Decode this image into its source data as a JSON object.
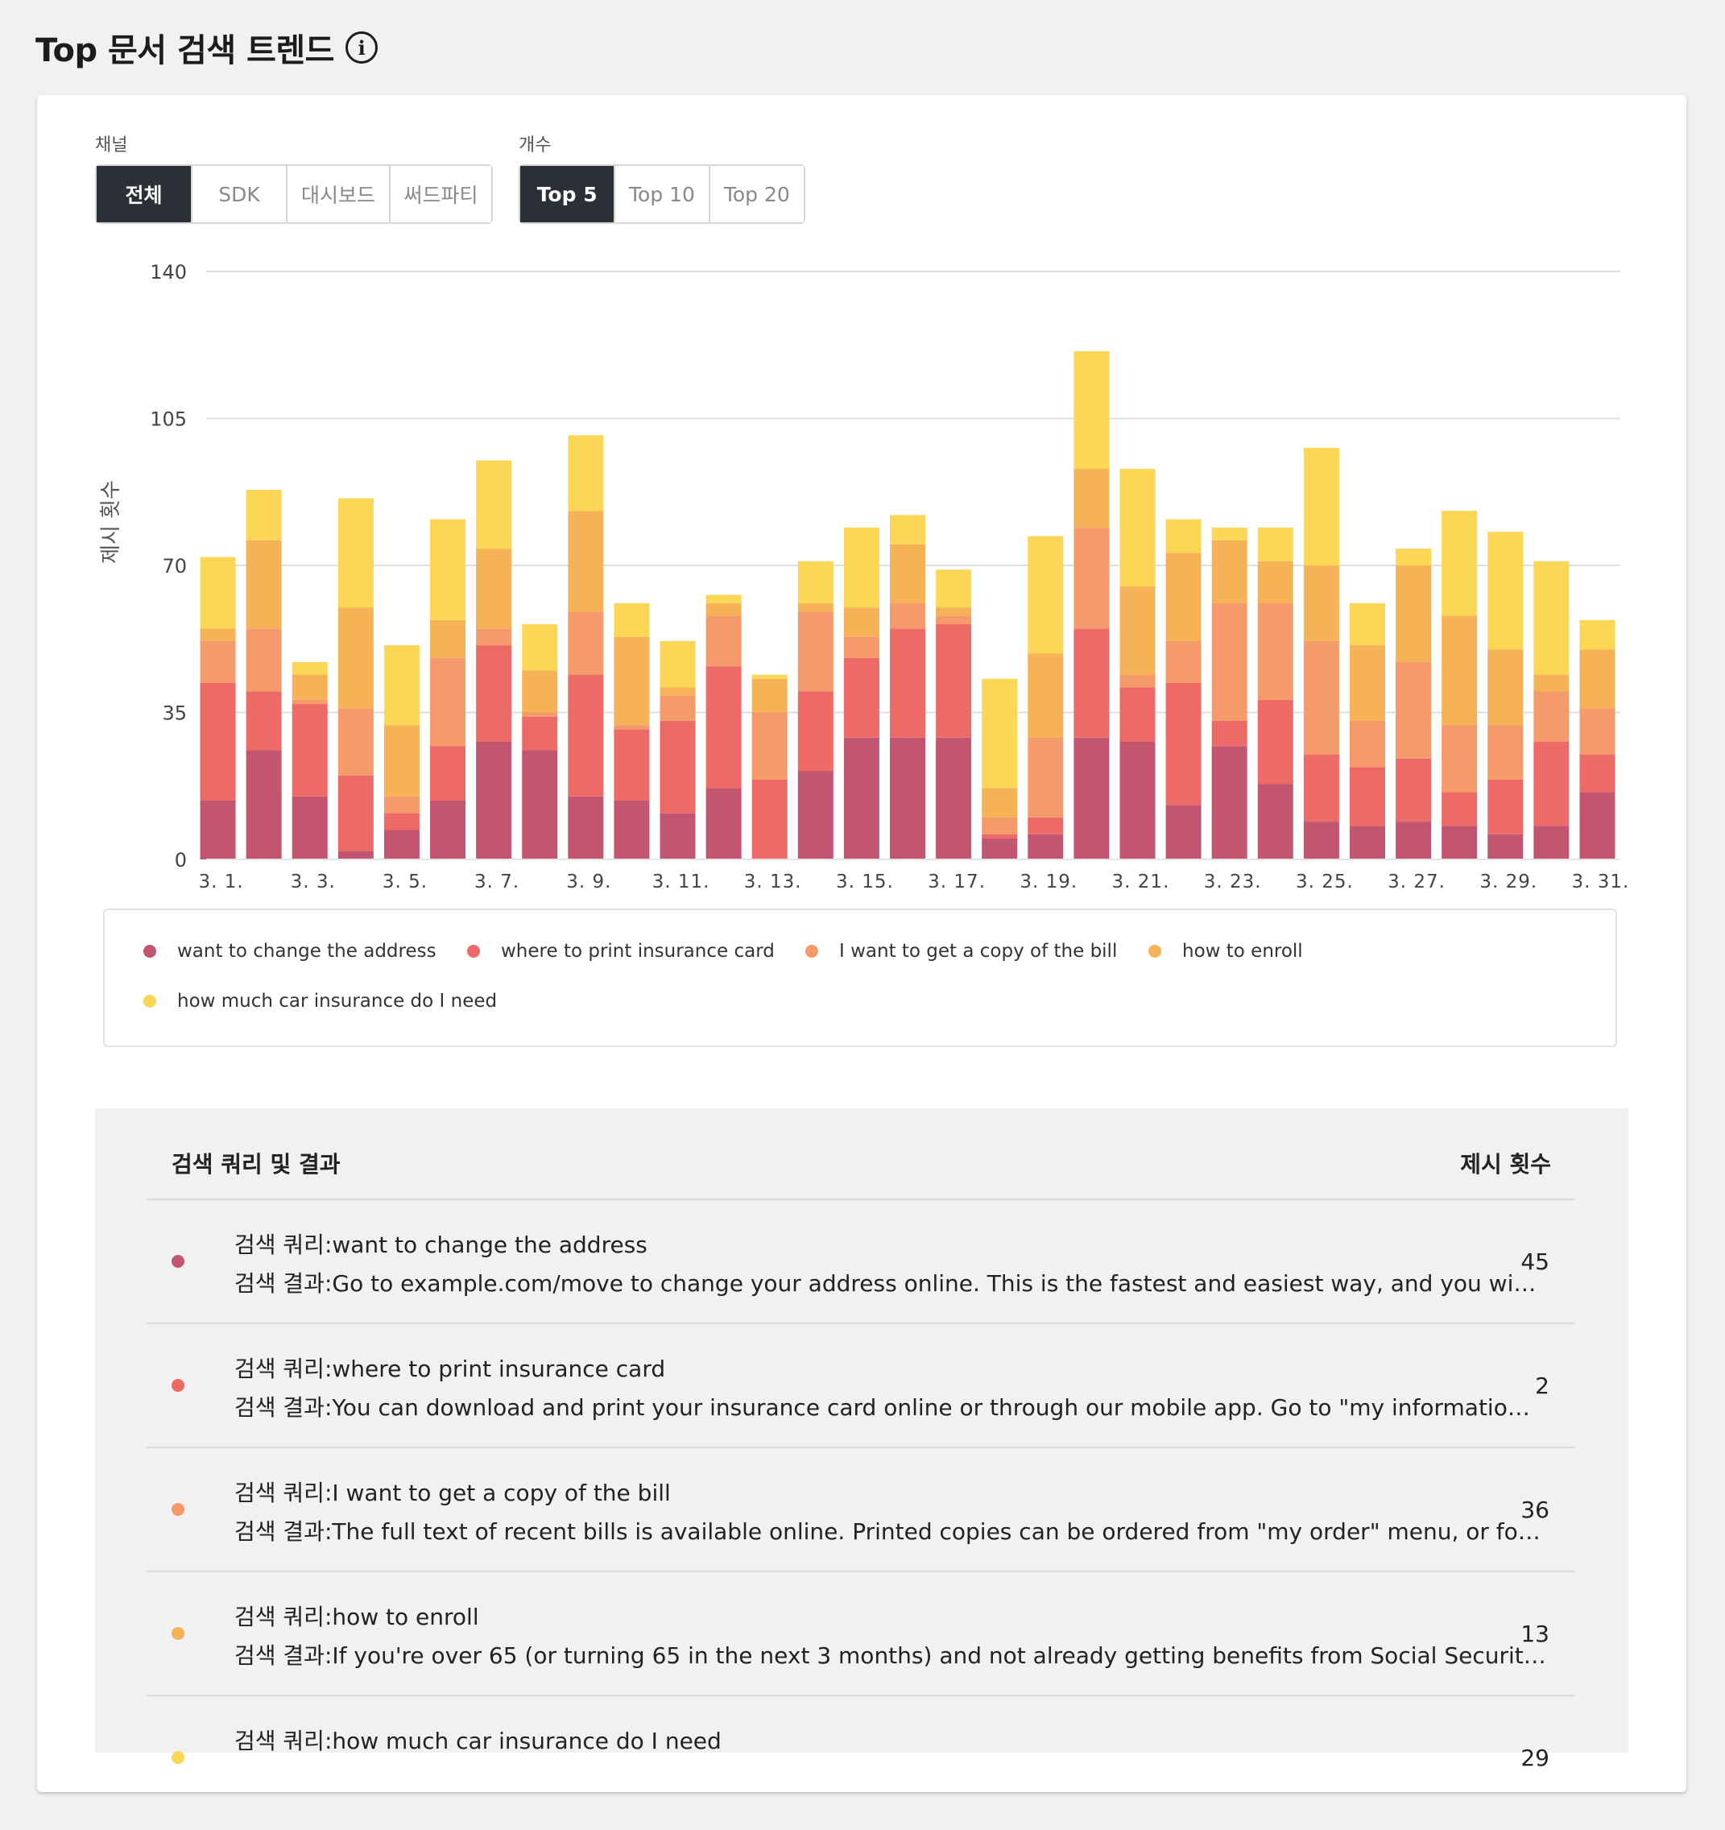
{
  "page": {
    "title": "Top 문서 검색 트렌드",
    "info_icon": "info-icon"
  },
  "filters": {
    "channel_label": "채널",
    "channel_options": [
      "전체",
      "SDK",
      "대시보드",
      "써드파티"
    ],
    "channel_selected": "전체",
    "count_label": "개수",
    "count_options": [
      "Top 5",
      "Top 10",
      "Top 20"
    ],
    "count_selected": "Top 5"
  },
  "colors": {
    "series": [
      "#c2556f",
      "#ee6a66",
      "#f59a6a",
      "#f5b257",
      "#fcd655"
    ],
    "active_button": "#2b2f36"
  },
  "chart_data": {
    "type": "bar",
    "stacked": true,
    "ylabel": "제시 횟수",
    "ylim": [
      0,
      140
    ],
    "yticks": [
      0,
      35,
      70,
      105,
      140
    ],
    "grid": true,
    "legend_position": "bottom",
    "categories": [
      "3. 1.",
      "3. 2.",
      "3. 3.",
      "3. 4.",
      "3. 5.",
      "3. 6.",
      "3. 7.",
      "3. 8.",
      "3. 9.",
      "3. 10.",
      "3. 11.",
      "3. 12.",
      "3. 13.",
      "3. 14.",
      "3. 15.",
      "3. 16.",
      "3. 17.",
      "3. 18.",
      "3. 19.",
      "3. 20.",
      "3. 21.",
      "3. 22.",
      "3. 23.",
      "3. 24.",
      "3. 25.",
      "3. 26.",
      "3. 27.",
      "3. 28.",
      "3. 29.",
      "3. 30.",
      "3. 31."
    ],
    "tick_labels": [
      "3. 1.",
      "",
      "3. 3.",
      "",
      "3. 5.",
      "",
      "3. 7.",
      "",
      "3. 9.",
      "",
      "3. 11.",
      "",
      "3. 13.",
      "",
      "3. 15.",
      "",
      "3. 17.",
      "",
      "3. 19.",
      "",
      "3. 21.",
      "",
      "3. 23.",
      "",
      "3. 25.",
      "",
      "3. 27.",
      "",
      "3. 29.",
      "",
      "3. 31."
    ],
    "series": [
      {
        "name": "want to change the address",
        "values": [
          14,
          26,
          15,
          2,
          7,
          14,
          28,
          26,
          15,
          14,
          11,
          17,
          0,
          21,
          29,
          29,
          29,
          5,
          6,
          29,
          28,
          13,
          27,
          18,
          9,
          8,
          9,
          8,
          6,
          8,
          16
        ]
      },
      {
        "name": "where to print insurance card",
        "values": [
          28,
          14,
          22,
          18,
          4,
          13,
          23,
          8,
          29,
          17,
          22,
          29,
          19,
          19,
          19,
          26,
          27,
          1,
          4,
          26,
          13,
          29,
          6,
          20,
          16,
          14,
          15,
          8,
          13,
          20,
          9
        ]
      },
      {
        "name": "I want to get a copy of the bill",
        "values": [
          10,
          15,
          1,
          16,
          4,
          21,
          4,
          1,
          15,
          1,
          6,
          12,
          16,
          19,
          5,
          6,
          2,
          4,
          19,
          24,
          3,
          10,
          28,
          23,
          27,
          11,
          23,
          16,
          13,
          12,
          11
        ]
      },
      {
        "name": "how to enroll",
        "values": [
          3,
          21,
          6,
          24,
          17,
          9,
          19,
          10,
          24,
          21,
          2,
          3,
          8,
          2,
          7,
          14,
          2,
          7,
          20,
          14,
          21,
          21,
          15,
          10,
          18,
          18,
          23,
          26,
          18,
          4,
          14
        ]
      },
      {
        "name": "how much car insurance do I need",
        "values": [
          17,
          12,
          3,
          26,
          19,
          24,
          21,
          11,
          18,
          8,
          11,
          2,
          1,
          10,
          19,
          7,
          9,
          26,
          28,
          28,
          28,
          8,
          3,
          8,
          28,
          10,
          4,
          25,
          28,
          27,
          7
        ]
      }
    ]
  },
  "table": {
    "header_query": "검색 쿼리 및 결과",
    "header_count": "제시 횟수",
    "rows": [
      {
        "query": "검색 쿼리:want to change the address",
        "result": "검색 결과:Go to example.com/move to change your address online. This is the fastest and easiest way, and you wi…",
        "count": "45"
      },
      {
        "query": "검색 쿼리:where to print insurance card",
        "result": "검색 결과:You can download and print your insurance card online or through our mobile app. Go to \"my informatio…",
        "count": "2"
      },
      {
        "query": "검색 쿼리:I want to get a copy of the bill",
        "result": "검색 결과:The full text of recent bills is available online. Printed copies can be ordered from \"my order\" menu, or fo…",
        "count": "36"
      },
      {
        "query": "검색 쿼리:how to enroll",
        "result": "검색 결과:If you're over 65 (or turning 65 in the next 3 months) and not already getting benefits from Social Securit…",
        "count": "13"
      },
      {
        "query": "검색 쿼리:how much car insurance do I need",
        "result": "",
        "count": "29"
      }
    ]
  }
}
